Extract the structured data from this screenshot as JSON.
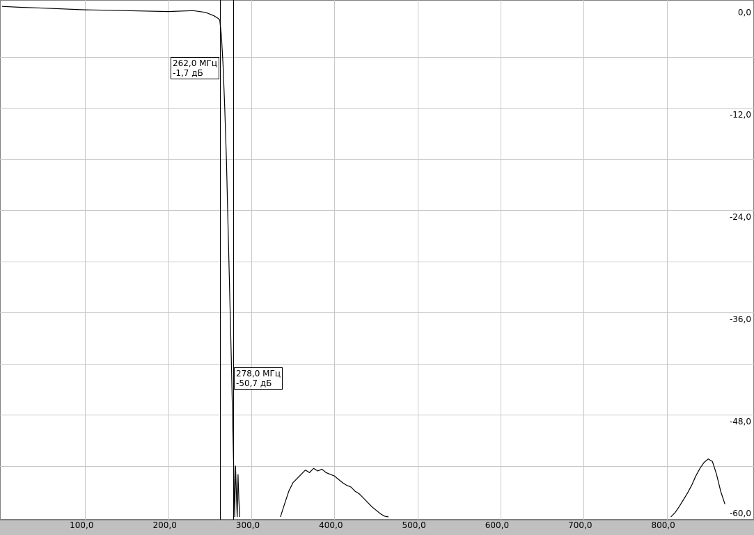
{
  "chart_data": {
    "type": "line",
    "title": "",
    "xlabel": "",
    "ylabel": "",
    "xlim": [
      0,
      890
    ],
    "ylim": [
      -60,
      0
    ],
    "grid": true,
    "x_ticks": [
      100,
      200,
      300,
      400,
      500,
      600,
      700,
      800
    ],
    "x_tick_labels": [
      "100,0",
      "200,0",
      "300,0",
      "400,0",
      "500,0",
      "600,0",
      "700,0",
      "800,0"
    ],
    "y_ticks": [
      0,
      -12,
      -24,
      -36,
      -48,
      -60
    ],
    "y_tick_labels": [
      "0,0",
      "-12,0",
      "-24,0",
      "-36,0",
      "-48,0",
      "-60,0"
    ],
    "series": [
      {
        "color": "#000000",
        "x": [
          0,
          20,
          50,
          100,
          150,
          200,
          230,
          245,
          255,
          260,
          262,
          264,
          266,
          268,
          270,
          272,
          274,
          276,
          278,
          279,
          280,
          281,
          282,
          283,
          284,
          285,
          286
        ],
        "y": [
          -0.1,
          -0.2,
          -0.3,
          -0.5,
          -0.6,
          -0.7,
          -0.6,
          -0.8,
          -1.2,
          -1.5,
          -1.7,
          -3.5,
          -7,
          -12,
          -18,
          -26,
          -34,
          -42,
          -50.7,
          -55,
          -60,
          -54,
          -57,
          -60,
          -55,
          -58,
          -60
        ]
      },
      {
        "color": "#000000",
        "x": [
          335,
          340,
          345,
          350,
          355,
          360,
          365,
          370,
          375,
          380,
          385,
          390,
          395,
          400,
          405,
          410,
          415,
          420,
          425,
          430,
          435,
          440,
          445,
          450,
          455,
          460,
          465
        ],
        "y": [
          -60,
          -58.5,
          -57,
          -56,
          -55.5,
          -55,
          -54.5,
          -54.8,
          -54.3,
          -54.6,
          -54.4,
          -54.8,
          -55,
          -55.2,
          -55.6,
          -56,
          -56.3,
          -56.5,
          -57,
          -57.3,
          -57.8,
          -58.3,
          -58.8,
          -59.2,
          -59.6,
          -59.9,
          -60
        ]
      },
      {
        "color": "#000000",
        "x": [
          805,
          810,
          815,
          820,
          825,
          830,
          835,
          840,
          845,
          850,
          855,
          860,
          865,
          870
        ],
        "y": [
          -60,
          -59.5,
          -58.8,
          -58,
          -57.2,
          -56.3,
          -55.2,
          -54.3,
          -53.6,
          -53.2,
          -53.5,
          -55,
          -57,
          -58.5
        ]
      }
    ],
    "cursors": [
      {
        "x": 262,
        "y": -1.7,
        "freq_label": "262,0 МГц",
        "level_label": "-1,7 дБ"
      },
      {
        "x": 278,
        "y": -50.7,
        "freq_label": "278,0 МГц",
        "level_label": "-50,7 дБ"
      }
    ]
  }
}
